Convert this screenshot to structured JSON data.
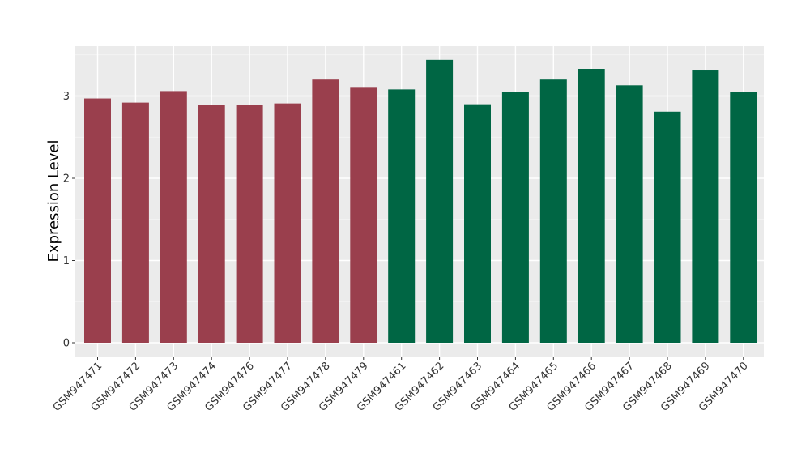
{
  "chart_data": {
    "type": "bar",
    "ylabel": "Expression Level",
    "xlabel": "",
    "title": "",
    "ylim": [
      0,
      3.5
    ],
    "yticks": [
      0,
      1,
      2,
      3
    ],
    "grid": true,
    "categories": [
      "GSM947471",
      "GSM947472",
      "GSM947473",
      "GSM947474",
      "GSM947476",
      "GSM947477",
      "GSM947478",
      "GSM947479",
      "GSM947461",
      "GSM947462",
      "GSM947463",
      "GSM947464",
      "GSM947465",
      "GSM947466",
      "GSM947467",
      "GSM947468",
      "GSM947469",
      "GSM947470"
    ],
    "values": [
      2.97,
      2.92,
      3.06,
      2.89,
      2.89,
      2.91,
      3.2,
      3.11,
      3.08,
      3.44,
      2.9,
      3.05,
      3.2,
      3.33,
      3.13,
      2.81,
      3.32,
      3.05
    ],
    "group_colors": [
      "#9a3f4d",
      "#9a3f4d",
      "#9a3f4d",
      "#9a3f4d",
      "#9a3f4d",
      "#9a3f4d",
      "#9a3f4d",
      "#9a3f4d",
      "#006644",
      "#006644",
      "#006644",
      "#006644",
      "#006644",
      "#006644",
      "#006644",
      "#006644",
      "#006644",
      "#006644"
    ]
  }
}
